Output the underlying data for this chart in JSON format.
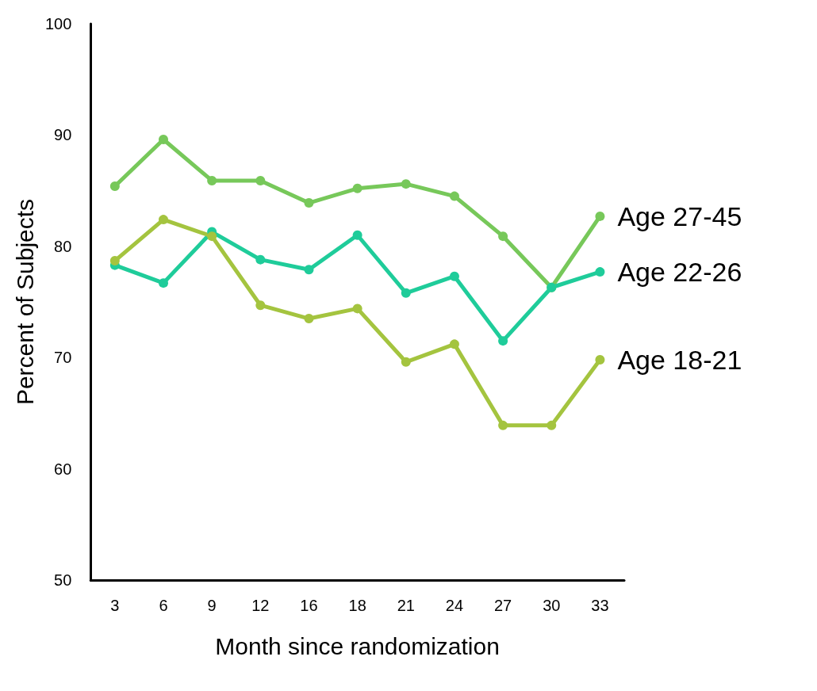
{
  "chart_data": {
    "type": "line",
    "xlabel": "Month since randomization",
    "ylabel": "Percent of Subjects",
    "categories": [
      "3",
      "6",
      "9",
      "12",
      "16",
      "18",
      "21",
      "24",
      "27",
      "30",
      "33"
    ],
    "ylim": [
      50,
      100
    ],
    "yticks": [
      50,
      60,
      70,
      80,
      90,
      100
    ],
    "grid": false,
    "marker": "circle",
    "line_style": "solid",
    "series": [
      {
        "name": "Age 27-45",
        "color": "#77c85a",
        "values": [
          85.4,
          89.6,
          85.9,
          85.9,
          83.9,
          85.2,
          85.6,
          84.5,
          80.9,
          76.3,
          82.7
        ]
      },
      {
        "name": "Age 22-26",
        "color": "#1fcc9a",
        "values": [
          78.3,
          76.7,
          81.3,
          78.8,
          77.9,
          81.0,
          75.8,
          77.3,
          71.5,
          76.3,
          77.7
        ]
      },
      {
        "name": "Age 18-21",
        "color": "#a4c43f",
        "values": [
          78.7,
          82.4,
          80.9,
          74.7,
          73.5,
          74.4,
          69.6,
          71.2,
          63.9,
          63.9,
          69.8
        ]
      }
    ]
  }
}
